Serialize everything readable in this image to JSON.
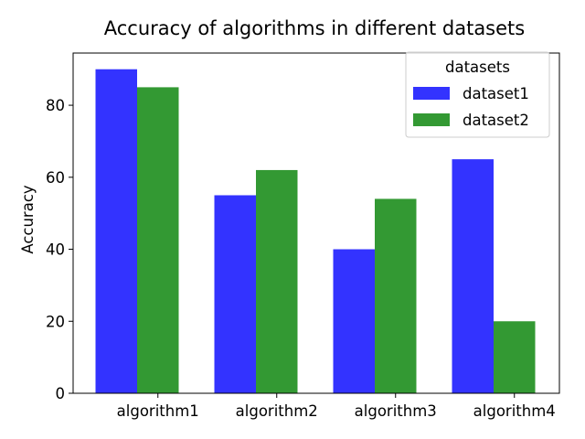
{
  "chart_data": {
    "type": "bar",
    "title": "Accuracy of algorithms in different datasets",
    "xlabel": "",
    "ylabel": "Accuracy",
    "categories": [
      "algorithm1",
      "algorithm2",
      "algorithm3",
      "algorithm4"
    ],
    "series": [
      {
        "name": "dataset1",
        "values": [
          90,
          55,
          40,
          65
        ],
        "color": "#3333ff"
      },
      {
        "name": "dataset2",
        "values": [
          85,
          62,
          54,
          20
        ],
        "color": "#339933"
      }
    ],
    "ylim": [
      0,
      94.5
    ],
    "yticks": [
      0,
      20,
      40,
      60,
      80
    ],
    "grid": false,
    "legend": {
      "title": "datasets",
      "placement": "top-right"
    }
  }
}
